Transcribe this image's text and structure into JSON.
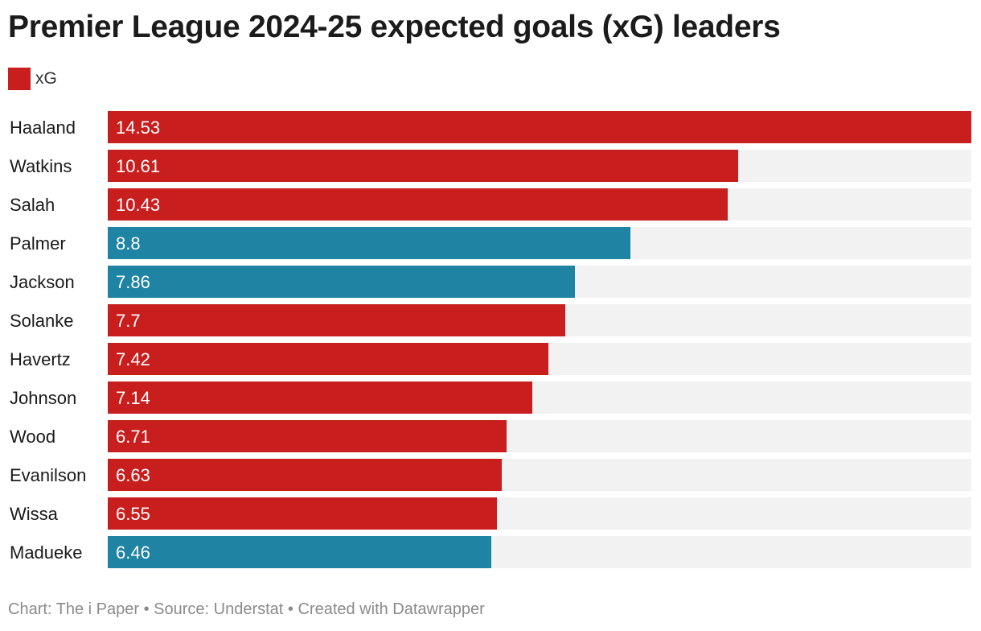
{
  "chart_data": {
    "type": "bar",
    "orientation": "horizontal",
    "title": "Premier League 2024-25 expected goals (xG) leaders",
    "categories": [
      "Haaland",
      "Watkins",
      "Salah",
      "Palmer",
      "Jackson",
      "Solanke",
      "Havertz",
      "Johnson",
      "Wood",
      "Evanilson",
      "Wissa",
      "Madueke"
    ],
    "values": [
      14.53,
      10.61,
      10.43,
      8.8,
      7.86,
      7.7,
      7.42,
      7.14,
      6.71,
      6.63,
      6.55,
      6.46
    ],
    "value_labels": [
      "14.53",
      "10.61",
      "10.43",
      "8.8",
      "7.86",
      "7.7",
      "7.42",
      "7.14",
      "6.71",
      "6.63",
      "6.55",
      "6.46"
    ],
    "bar_colors": [
      "#c81e1e",
      "#c81e1e",
      "#c81e1e",
      "#1f83a3",
      "#1f83a3",
      "#c81e1e",
      "#c81e1e",
      "#c81e1e",
      "#c81e1e",
      "#c81e1e",
      "#c81e1e",
      "#1f83a3"
    ],
    "xlim": [
      0,
      14.53
    ],
    "grid": false,
    "legend": {
      "position": "top-left",
      "entries": [
        {
          "label": "xG",
          "color": "#c81e1e"
        }
      ]
    },
    "xlabel": "",
    "ylabel": ""
  },
  "colors": {
    "track": "#f2f2f2",
    "label_text": "#1a1a1a",
    "value_text": "#ffffff"
  },
  "footer": "Chart: The i Paper • Source: Understat • Created with Datawrapper"
}
